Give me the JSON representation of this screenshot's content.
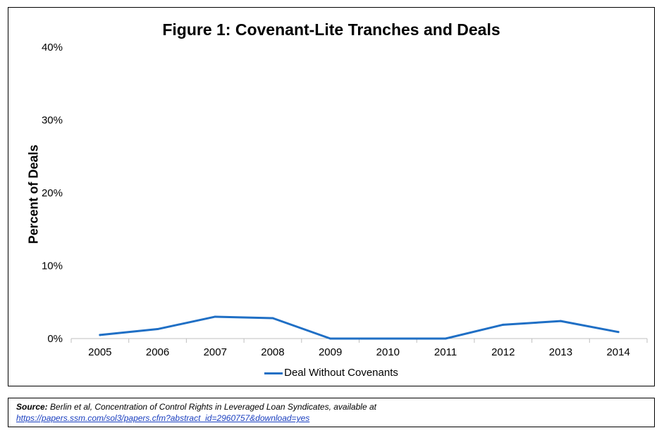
{
  "chart_data": {
    "type": "line",
    "title": "Figure 1: Covenant-Lite Tranches and Deals",
    "xlabel": "",
    "ylabel": "Percent of Deals",
    "categories": [
      "2005",
      "2006",
      "2007",
      "2008",
      "2009",
      "2010",
      "2011",
      "2012",
      "2013",
      "2014"
    ],
    "series": [
      {
        "name": "Deal Without Covenants",
        "color": "#1f6fc5",
        "values": [
          0.5,
          1.3,
          3.0,
          2.8,
          0.0,
          0.0,
          0.0,
          1.9,
          2.4,
          0.9
        ]
      }
    ],
    "ylim": [
      0,
      40
    ],
    "yticks": [
      0,
      10,
      20,
      30,
      40
    ],
    "ytick_labels": [
      "0%",
      "10%",
      "20%",
      "30%",
      "40%"
    ],
    "grid": false,
    "legend_position": "bottom"
  },
  "source": {
    "label": "Source:",
    "text": " Berlin et al, Concentration of Control Rights in Leveraged Loan Syndicates, available at",
    "link": "https://papers.ssm.com/sol3/papers.cfm?abstract_id=2960757&download=yes"
  }
}
